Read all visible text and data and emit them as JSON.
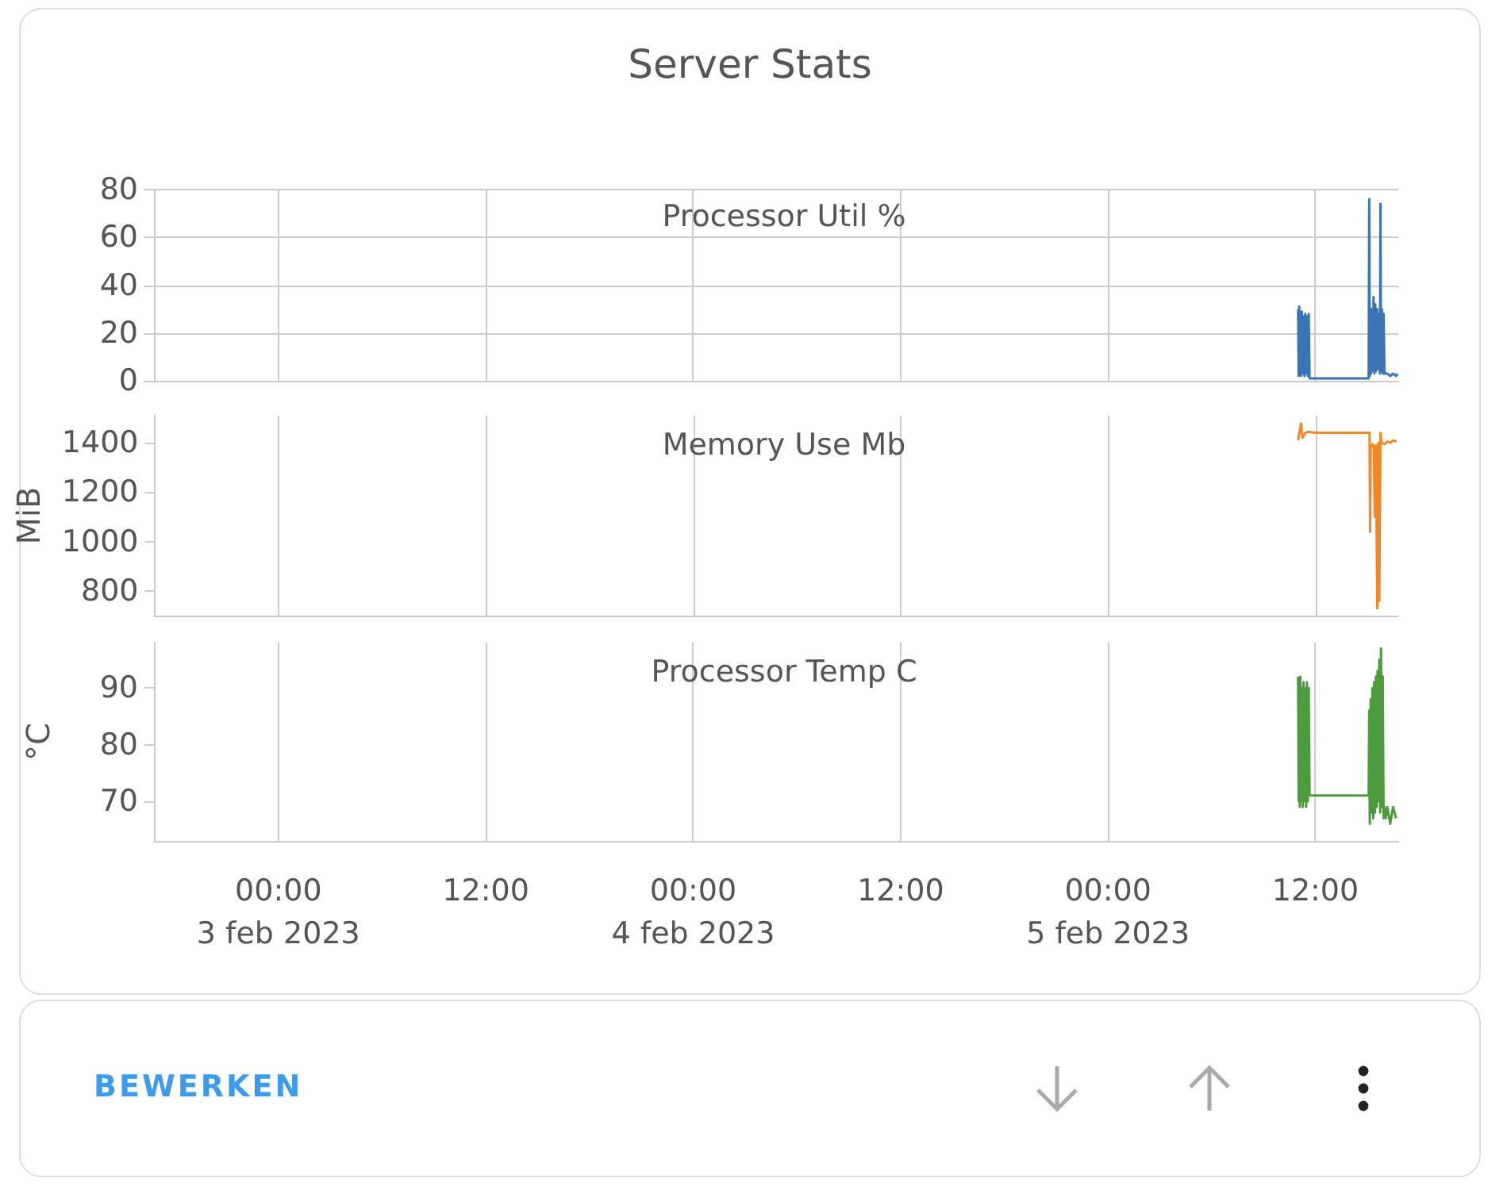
{
  "chart_data": [
    {
      "type": "other",
      "title": "Server Stats",
      "annotations": [
        "BEWERKEN"
      ]
    },
    {
      "type": "line",
      "title": "Processor Util %",
      "grid": true,
      "tick_labels": "y",
      "xlim": [
        "2023-02-02T16:48",
        "2023-02-05T16:48"
      ],
      "ylim": [
        0,
        80
      ],
      "yticks": [
        0,
        20,
        40,
        60,
        80
      ],
      "xticks": [
        {
          "value": "2023-02-03T00:00",
          "label": null
        },
        {
          "value": "2023-02-03T12:00",
          "label": null
        },
        {
          "value": "2023-02-04T00:00",
          "label": null
        },
        {
          "value": "2023-02-04T12:00",
          "label": null
        },
        {
          "value": "2023-02-05T00:00",
          "label": null
        },
        {
          "value": "2023-02-05T12:00",
          "label": null
        }
      ],
      "series": [
        {
          "color": "#3b74b5",
          "x": [
            "2023-02-05T11:00",
            "2023-02-05T11:02",
            "2023-02-05T11:04",
            "2023-02-05T11:06",
            "2023-02-05T11:08",
            "2023-02-05T11:10",
            "2023-02-05T11:13",
            "2023-02-05T11:16",
            "2023-02-05T11:19",
            "2023-02-05T11:22",
            "2023-02-05T11:25",
            "2023-02-05T11:28",
            "2023-02-05T11:31",
            "2023-02-05T11:34",
            "2023-02-05T11:37",
            "2023-02-05T11:40",
            "2023-02-05T11:45",
            "2023-02-05T15:05",
            "2023-02-05T15:07",
            "2023-02-05T15:09",
            "2023-02-05T15:11",
            "2023-02-05T15:13",
            "2023-02-05T15:16",
            "2023-02-05T15:19",
            "2023-02-05T15:22",
            "2023-02-05T15:25",
            "2023-02-05T15:28",
            "2023-02-05T15:31",
            "2023-02-05T15:35",
            "2023-02-05T15:38",
            "2023-02-05T15:41",
            "2023-02-05T15:44",
            "2023-02-05T15:46",
            "2023-02-05T15:48",
            "2023-02-05T15:51",
            "2023-02-05T15:54",
            "2023-02-05T15:57",
            "2023-02-05T16:00",
            "2023-02-05T16:10",
            "2023-02-05T16:20",
            "2023-02-05T16:30",
            "2023-02-05T16:40",
            "2023-02-05T16:45"
          ],
          "values": [
            30,
            2,
            31,
            3,
            29,
            2,
            29,
            3,
            27,
            2,
            28,
            3,
            27,
            2,
            28,
            1,
            1,
            1,
            76,
            2,
            25,
            3,
            30,
            4,
            35,
            3,
            32,
            4,
            30,
            5,
            28,
            3,
            74,
            4,
            30,
            3,
            28,
            3,
            3,
            2,
            3,
            2,
            3
          ]
        }
      ]
    },
    {
      "type": "line",
      "title": "Memory Use Mb",
      "ylabel": "MiB",
      "grid": "x",
      "tick_labels": "y",
      "xlim": [
        "2023-02-02T16:48",
        "2023-02-05T16:48"
      ],
      "ylim": [
        700,
        1510
      ],
      "yticks": [
        800,
        1000,
        1200,
        1400
      ],
      "xticks": [
        {
          "value": "2023-02-03T00:00",
          "label": null
        },
        {
          "value": "2023-02-03T12:00",
          "label": null
        },
        {
          "value": "2023-02-04T00:00",
          "label": null
        },
        {
          "value": "2023-02-04T12:00",
          "label": null
        },
        {
          "value": "2023-02-05T00:00",
          "label": null
        },
        {
          "value": "2023-02-05T12:00",
          "label": null
        }
      ],
      "series": [
        {
          "color": "#f4862a",
          "x": [
            "2023-02-05T11:00",
            "2023-02-05T11:10",
            "2023-02-05T11:15",
            "2023-02-05T11:25",
            "2023-02-05T11:35",
            "2023-02-05T12:00",
            "2023-02-05T15:08",
            "2023-02-05T15:10",
            "2023-02-05T15:12",
            "2023-02-05T15:18",
            "2023-02-05T15:23",
            "2023-02-05T15:26",
            "2023-02-05T15:30",
            "2023-02-05T15:35",
            "2023-02-05T15:38",
            "2023-02-05T15:42",
            "2023-02-05T15:46",
            "2023-02-05T15:50",
            "2023-02-05T16:00",
            "2023-02-05T16:10",
            "2023-02-05T16:20",
            "2023-02-05T16:30",
            "2023-02-05T16:42"
          ],
          "values": [
            1410,
            1478,
            1420,
            1440,
            1445,
            1441,
            1441,
            1040,
            1380,
            1395,
            1380,
            1100,
            1390,
            730,
            1400,
            760,
            1440,
            1400,
            1395,
            1405,
            1400,
            1410,
            1405
          ]
        }
      ]
    },
    {
      "type": "line",
      "title": "Processor Temp C",
      "ylabel": "°C",
      "grid": "x",
      "xlim": [
        "2023-02-02T16:48",
        "2023-02-05T16:48"
      ],
      "ylim": [
        63,
        98
      ],
      "yticks": [
        70,
        80,
        90
      ],
      "xticks": [
        {
          "value": "2023-02-03T00:00",
          "label": "00:00\n3 feb 2023"
        },
        {
          "value": "2023-02-03T12:00",
          "label": "12:00"
        },
        {
          "value": "2023-02-04T00:00",
          "label": "00:00\n4 feb 2023"
        },
        {
          "value": "2023-02-04T12:00",
          "label": "12:00"
        },
        {
          "value": "2023-02-05T00:00",
          "label": "00:00\n5 feb 2023"
        },
        {
          "value": "2023-02-05T12:00",
          "label": "12:00"
        }
      ],
      "series": [
        {
          "color": "#4e9a3e",
          "x": [
            "2023-02-05T11:00",
            "2023-02-05T11:02",
            "2023-02-05T11:04",
            "2023-02-05T11:06",
            "2023-02-05T11:08",
            "2023-02-05T11:10",
            "2023-02-05T11:13",
            "2023-02-05T11:16",
            "2023-02-05T11:19",
            "2023-02-05T11:22",
            "2023-02-05T11:25",
            "2023-02-05T11:28",
            "2023-02-05T11:31",
            "2023-02-05T11:34",
            "2023-02-05T11:37",
            "2023-02-05T11:40",
            "2023-02-05T11:45",
            "2023-02-05T15:05",
            "2023-02-05T15:07",
            "2023-02-05T15:09",
            "2023-02-05T15:12",
            "2023-02-05T15:15",
            "2023-02-05T15:18",
            "2023-02-05T15:21",
            "2023-02-05T15:24",
            "2023-02-05T15:27",
            "2023-02-05T15:30",
            "2023-02-05T15:33",
            "2023-02-05T15:36",
            "2023-02-05T15:39",
            "2023-02-05T15:42",
            "2023-02-05T15:45",
            "2023-02-05T15:48",
            "2023-02-05T15:51",
            "2023-02-05T15:54",
            "2023-02-05T15:57",
            "2023-02-05T16:00",
            "2023-02-05T16:05",
            "2023-02-05T16:10",
            "2023-02-05T16:20",
            "2023-02-05T16:30",
            "2023-02-05T16:40"
          ],
          "values": [
            92,
            70,
            91,
            69,
            92,
            70,
            90,
            69,
            91,
            70,
            90,
            69,
            91,
            70,
            90,
            71,
            71,
            71,
            86,
            66,
            88,
            68,
            90,
            67,
            91,
            68,
            92,
            69,
            93,
            70,
            95,
            68,
            97,
            69,
            92,
            67,
            69,
            67,
            69,
            66,
            69,
            67
          ]
        }
      ]
    }
  ]
}
